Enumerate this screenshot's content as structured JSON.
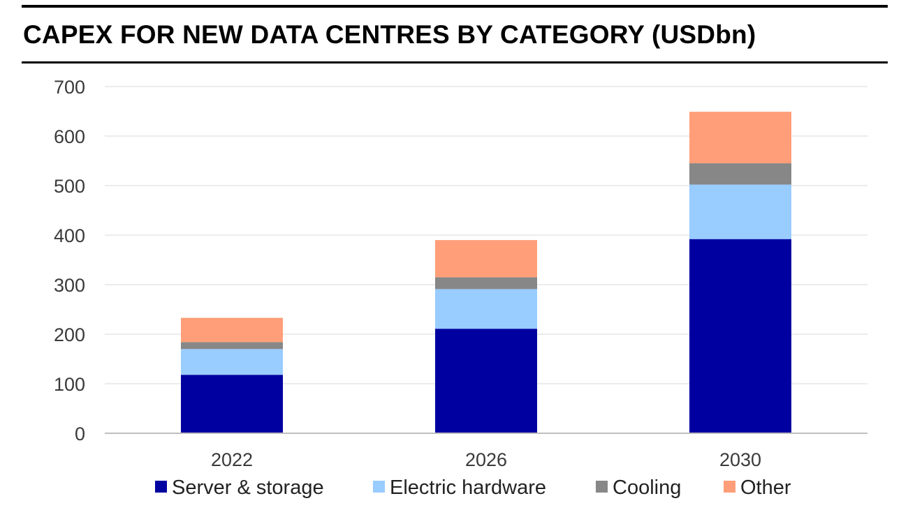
{
  "title": "CAPEX FOR NEW DATA CENTRES BY CATEGORY (USDbn)",
  "chart_data": {
    "type": "bar",
    "stacked": true,
    "title": "CAPEX FOR NEW DATA CENTRES BY CATEGORY (USDbn)",
    "xlabel": "",
    "ylabel": "",
    "categories": [
      "2022",
      "2026",
      "2030"
    ],
    "ylim": [
      0,
      700
    ],
    "yticks": [
      0,
      100,
      200,
      300,
      400,
      500,
      600,
      700
    ],
    "grid": true,
    "legend_position": "bottom",
    "series": [
      {
        "name": "Server & storage",
        "color": "#0000A0",
        "values": [
          118,
          211,
          392
        ]
      },
      {
        "name": "Electric hardware",
        "color": "#99CCFF",
        "values": [
          52,
          80,
          110
        ]
      },
      {
        "name": "Cooling",
        "color": "#878787",
        "values": [
          14,
          24,
          43
        ]
      },
      {
        "name": "Other",
        "color": "#FF9E79",
        "values": [
          49,
          75,
          104
        ]
      }
    ]
  }
}
